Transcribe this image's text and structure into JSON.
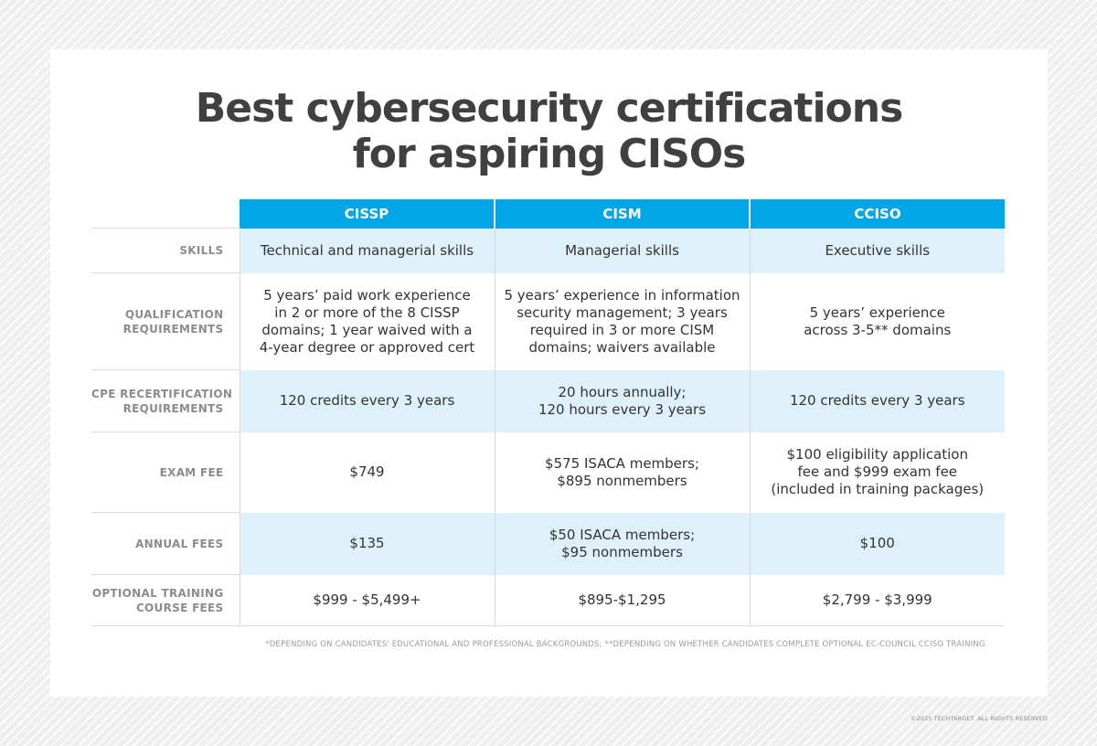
{
  "title_lines": [
    "Best cybersecurity certifications",
    "for aspiring CISOs"
  ],
  "columns": [
    "CISSP",
    "CISM",
    "CCISO"
  ],
  "rows": [
    {
      "label": [
        "SKILLS"
      ],
      "cells": [
        [
          "Technical and managerial skills"
        ],
        [
          "Managerial skills"
        ],
        [
          "Executive skills"
        ]
      ]
    },
    {
      "label": [
        "QUALIFICATION",
        "REQUIREMENTS"
      ],
      "cells": [
        [
          "5 years’ paid work experience",
          "in 2 or more of the 8 CISSP",
          "domains; 1 year waived with a",
          "4-year degree or approved cert"
        ],
        [
          "5 years’ experience in information",
          "security management; 3 years",
          "required in 3 or more CISM",
          "domains; waivers available"
        ],
        [
          "5 years’ experience",
          "across 3-5** domains"
        ]
      ]
    },
    {
      "label": [
        "CPE RECERTIFICATION",
        "REQUIREMENTS"
      ],
      "cells": [
        [
          "120 credits every 3 years"
        ],
        [
          "20 hours annually;",
          "120 hours every 3 years"
        ],
        [
          "120 credits every 3 years"
        ]
      ]
    },
    {
      "label": [
        "EXAM FEE"
      ],
      "cells": [
        [
          "$749"
        ],
        [
          "$575 ISACA members;",
          "$895 nonmembers"
        ],
        [
          "$100 eligibility application",
          "fee and $999 exam fee",
          "(included in training packages)"
        ]
      ]
    },
    {
      "label": [
        "ANNUAL FEES"
      ],
      "cells": [
        [
          "$135"
        ],
        [
          "$50 ISACA members;",
          "$95 nonmembers"
        ],
        [
          "$100"
        ]
      ]
    },
    {
      "label": [
        "OPTIONAL TRAINING",
        "COURSE FEES"
      ],
      "cells": [
        [
          "$999 - $5,499+"
        ],
        [
          "$895-$1,295"
        ],
        [
          "$2,799 - $3,999"
        ]
      ]
    }
  ],
  "footnote": "*DEPENDING ON CANDIDATES' EDUCATIONAL AND PROFESSIONAL BACKGROUNDS; **DEPENDING ON WHETHER CANDIDATES COMPLETE OPTIONAL EC-COUNCIL CCISO TRAINING",
  "copyright": "©2025 TECHTARGET. ALL RIGHTS RESERVED",
  "colors": {
    "header_bg": "#00a6e5",
    "row_shade": "#def1fb",
    "label_text": "#8c8c8c",
    "title_text": "#404040"
  }
}
